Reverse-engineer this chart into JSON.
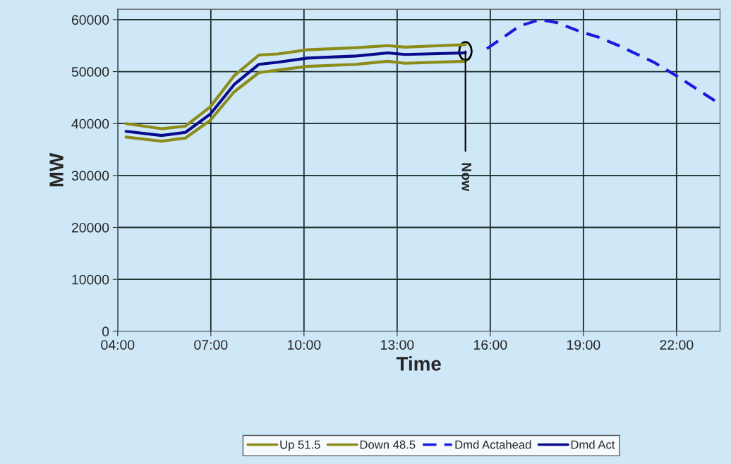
{
  "chart_data": {
    "type": "line",
    "xlabel": "Time",
    "ylabel": "MW",
    "series": [
      {
        "name": "Up 51.5",
        "color": "#8c8c1a",
        "x": [
          4.27,
          5.41,
          6.18,
          6.98,
          7.75,
          8.55,
          9.16,
          10.11,
          11.68,
          12.7,
          13.25,
          15.2
        ],
        "values": [
          40000,
          39000,
          39500,
          43200,
          49200,
          53200,
          53400,
          54200,
          54600,
          55000,
          54700,
          55200
        ]
      },
      {
        "name": "Down 48.5",
        "color": "#8c8c1a",
        "x": [
          4.27,
          5.41,
          6.18,
          6.98,
          7.75,
          8.55,
          9.16,
          10.11,
          11.68,
          12.7,
          13.25,
          15.2
        ],
        "values": [
          37400,
          36600,
          37200,
          40600,
          46100,
          49800,
          50300,
          51000,
          51400,
          52000,
          51600,
          52000
        ]
      },
      {
        "name": "Dmd Actahead",
        "color": "#1a1ae0",
        "line_style": "dashed",
        "x": [
          15.89,
          16.95,
          17.6,
          18.16,
          18.9,
          19.45,
          20.14,
          21.27,
          22.02,
          23.23
        ],
        "values": [
          54400,
          58800,
          60000,
          59400,
          57700,
          56700,
          55000,
          51800,
          49100,
          44400
        ]
      },
      {
        "name": "Dmd Act",
        "color": "#0a0a8c",
        "x": [
          4.27,
          5.41,
          6.18,
          6.98,
          7.75,
          8.55,
          9.16,
          10.11,
          11.68,
          12.7,
          13.25,
          15.2
        ],
        "values": [
          38500,
          37700,
          38300,
          41800,
          47500,
          51400,
          51800,
          52600,
          53000,
          53600,
          53300,
          53600
        ]
      }
    ],
    "xlim": [
      4,
      23.4
    ],
    "ylim": [
      0,
      62000
    ],
    "xticks": [
      {
        "value": 4,
        "label": "04:00"
      },
      {
        "value": 7,
        "label": "07:00"
      },
      {
        "value": 10,
        "label": "10:00"
      },
      {
        "value": 13,
        "label": "13:00"
      },
      {
        "value": 16,
        "label": "16:00"
      },
      {
        "value": 19,
        "label": "19:00"
      },
      {
        "value": 22,
        "label": "22:00"
      }
    ],
    "yticks": [
      0,
      10000,
      20000,
      30000,
      40000,
      50000,
      60000
    ],
    "ref_lines": [
      {
        "axis": "x",
        "value": 15.2,
        "label": "Now",
        "color": "#000000"
      }
    ],
    "grid": true,
    "legend": "bottom",
    "marker": "none"
  }
}
